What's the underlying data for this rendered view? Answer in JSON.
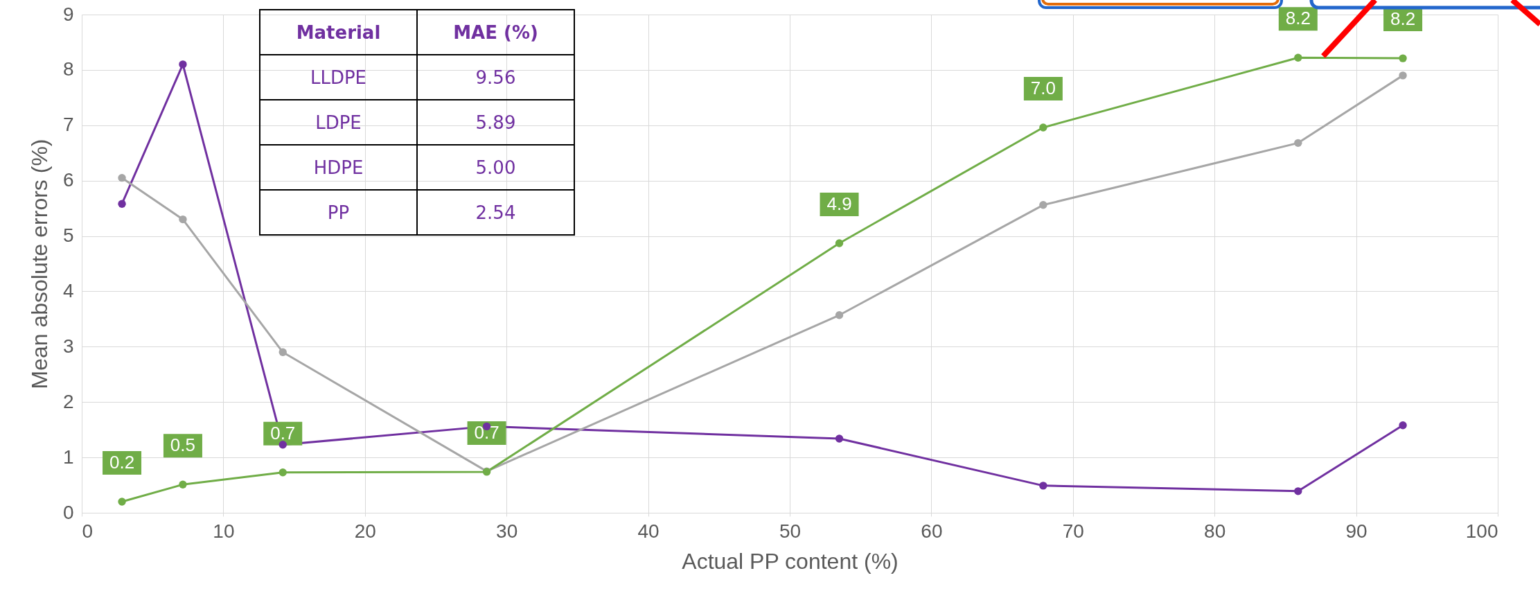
{
  "chart_data": {
    "type": "line",
    "xlabel": "Actual PP content (%)",
    "ylabel": "Mean absolute errors (%)",
    "x": [
      2.84,
      7.14,
      14.2,
      28.6,
      53.5,
      67.9,
      85.9,
      93.3
    ],
    "series": [
      {
        "color": "#7030a0",
        "values": [
          5.58,
          8.1,
          1.23,
          1.56,
          1.34,
          0.49,
          0.39,
          1.58
        ]
      },
      {
        "color": "#a6a6a6",
        "values": [
          6.05,
          5.3,
          2.9,
          0.75,
          3.57,
          5.56,
          6.68,
          7.9
        ]
      },
      {
        "color": "#70ad47",
        "values": [
          0.2,
          0.51,
          0.73,
          0.74,
          4.87,
          6.96,
          8.22,
          8.21
        ],
        "value_labels": [
          "0.2",
          "0.5",
          "0.7",
          "0.7",
          "4.9",
          "7.0",
          "8.2",
          "8.2"
        ]
      }
    ],
    "xlim": [
      0,
      100
    ],
    "xticks": [
      0,
      10,
      20,
      30,
      40,
      50,
      60,
      70,
      80,
      90,
      100
    ],
    "ylim": [
      0,
      9
    ],
    "yticks": [
      0,
      1,
      2,
      3,
      4,
      5,
      6,
      7,
      8,
      9
    ],
    "grid": true,
    "marker": "circle",
    "annotations": [
      "Material",
      "MAE (%)",
      "LLDPE",
      "9.56",
      "LDPE",
      "5.89",
      "HDPE",
      "5.00",
      "PP",
      "2.54"
    ]
  }
}
